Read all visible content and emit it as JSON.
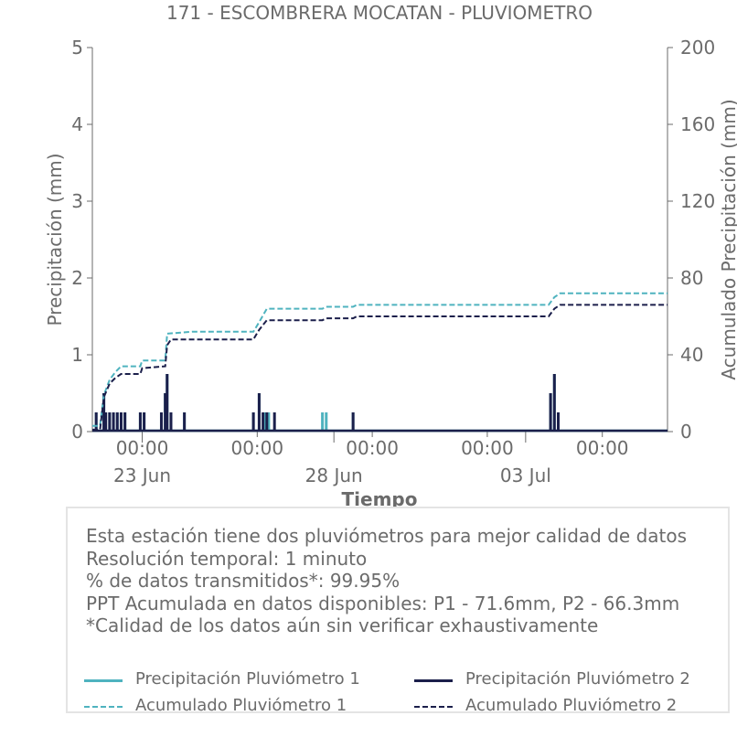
{
  "chart_data": {
    "type": "line",
    "title": "171 - ESCOMBRERA MOCATAN - PLUVIOMETRO",
    "xlabel": "Tiempo",
    "ylabel_left": "Precipitación (mm)",
    "ylabel_right": "Acumulado Precipitación (mm)",
    "ylim_left": [
      0,
      5
    ],
    "ylim_right": [
      0,
      200
    ],
    "yticks_left": [
      0,
      1,
      2,
      3,
      4,
      5
    ],
    "yticks_right": [
      0,
      40,
      80,
      120,
      160,
      200
    ],
    "xlim_days": [
      0,
      15
    ],
    "xticks": [
      {
        "day": 1.3,
        "time": "00:00",
        "date": "23 Jun"
      },
      {
        "day": 4.3,
        "time": "00:00",
        "date": ""
      },
      {
        "day": 6.3,
        "time": "",
        "date": "28 Jun"
      },
      {
        "day": 7.3,
        "time": "00:00",
        "date": ""
      },
      {
        "day": 10.3,
        "time": "00:00",
        "date": ""
      },
      {
        "day": 11.3,
        "time": "",
        "date": "03 Jul"
      },
      {
        "day": 13.3,
        "time": "00:00",
        "date": ""
      }
    ],
    "grid": false,
    "series": [
      {
        "name": "Precipitación Pluviómetro 1",
        "axis": "left",
        "color": "#4fb3bf",
        "style": "solid",
        "x": [
          0.1,
          0.3,
          0.45,
          0.55,
          0.65,
          0.75,
          0.85,
          1.25,
          1.35,
          1.8,
          1.9,
          1.95,
          2.05,
          2.4,
          4.2,
          4.35,
          4.5,
          4.6,
          6.0,
          6.1,
          6.8,
          11.95,
          12.05,
          12.15
        ],
        "values": [
          0.25,
          0.5,
          0.25,
          0.25,
          0.25,
          0.25,
          0.25,
          0.25,
          0.25,
          0.25,
          0.5,
          0.75,
          0.25,
          0.25,
          0.25,
          0.5,
          0.25,
          0.25,
          0.25,
          0.25,
          0.25,
          0.5,
          0.75,
          0.25
        ]
      },
      {
        "name": "Precipitación Pluviómetro 2",
        "axis": "left",
        "color": "#1b1f4b",
        "style": "solid",
        "x": [
          0.1,
          0.3,
          0.35,
          0.45,
          0.55,
          0.65,
          0.75,
          0.85,
          1.25,
          1.35,
          1.8,
          1.9,
          1.95,
          2.05,
          2.4,
          4.2,
          4.35,
          4.45,
          4.55,
          4.75,
          6.8,
          11.95,
          12.05,
          12.15
        ],
        "values": [
          0.25,
          0.5,
          0.25,
          0.25,
          0.25,
          0.25,
          0.25,
          0.25,
          0.25,
          0.25,
          0.25,
          0.5,
          0.75,
          0.25,
          0.25,
          0.25,
          0.5,
          0.25,
          0.25,
          0.25,
          0.25,
          0.5,
          0.75,
          0.25
        ]
      },
      {
        "name": "Acumulado Pluviómetro 1",
        "axis": "right",
        "color": "#4fb3bf",
        "style": "dashed",
        "x": [
          0,
          0.2,
          0.3,
          0.45,
          0.6,
          0.75,
          1.25,
          1.3,
          1.9,
          1.95,
          2.6,
          4.2,
          4.35,
          4.55,
          6.0,
          6.1,
          6.8,
          6.9,
          11.9,
          12.05,
          12.2,
          15
        ],
        "values": [
          3,
          3,
          19,
          27,
          31,
          34,
          34,
          37,
          37,
          51,
          52,
          52,
          57,
          64,
          64,
          65,
          65,
          66,
          66,
          70,
          72,
          72
        ]
      },
      {
        "name": "Acumulado Pluviómetro 2",
        "axis": "right",
        "color": "#1b1f4b",
        "style": "dashed",
        "x": [
          0,
          0.2,
          0.3,
          0.45,
          0.6,
          0.75,
          1.25,
          1.3,
          1.9,
          1.95,
          2.05,
          4.2,
          4.35,
          4.55,
          6.0,
          6.1,
          6.8,
          6.9,
          11.9,
          12.05,
          12.2,
          15
        ],
        "values": [
          1,
          1,
          18,
          25,
          28,
          30,
          30,
          33,
          34,
          45,
          48,
          48,
          53,
          58,
          58,
          59,
          59,
          60,
          60,
          64,
          66,
          66
        ]
      }
    ],
    "legend_position": "bottom"
  },
  "info": {
    "lines": [
      "Esta estación tiene dos pluviómetros para mejor calidad de datos",
      "Resolución temporal: 1 minuto",
      "% de datos transmitidos*: 99.95%",
      "PPT Acumulada en datos disponibles: P1 - 71.6mm, P2 - 66.3mm",
      "*Calidad de los datos aún sin verificar exhaustivamente"
    ]
  },
  "legend": {
    "items": [
      {
        "label": "Precipitación Pluviómetro 1",
        "color": "#4fb3bf",
        "style": "solid"
      },
      {
        "label": "Precipitación Pluviómetro 2",
        "color": "#1b1f4b",
        "style": "solid"
      },
      {
        "label": "Acumulado Pluviómetro 1",
        "color": "#4fb3bf",
        "style": "dashed"
      },
      {
        "label": "Acumulado Pluviómetro 2",
        "color": "#1b1f4b",
        "style": "dashed"
      }
    ]
  },
  "colors": {
    "text": "#6b6b6b",
    "axis": "#6b6b6b",
    "p1": "#4fb3bf",
    "p2": "#1b1f4b"
  }
}
